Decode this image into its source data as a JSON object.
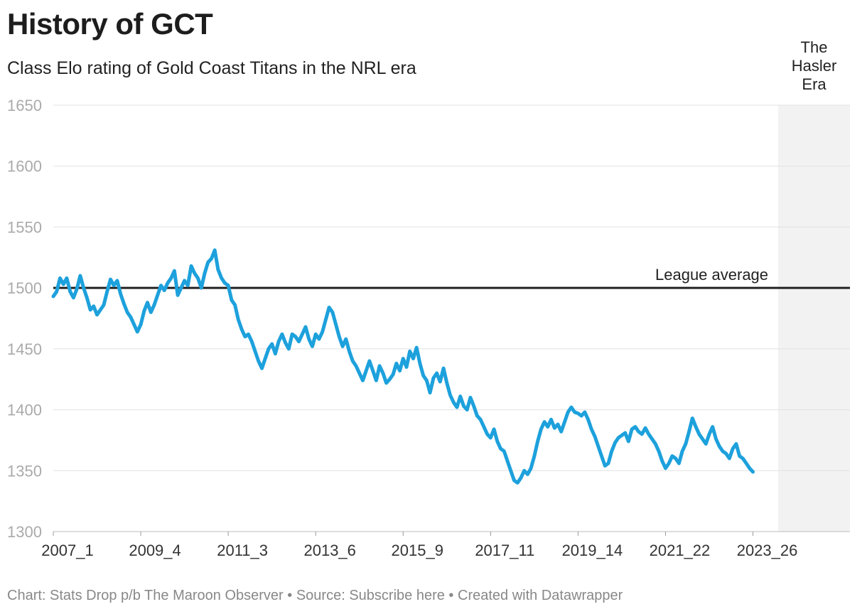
{
  "header": {
    "title": "History of GCT",
    "subtitle": "Class Elo rating of Gold Coast Titans in the NRL era"
  },
  "footer": {
    "chart_by": "Chart: Stats Drop p/b The Maroon Observer",
    "source": "Source: Subscribe here",
    "created_with": "Created with Datawrapper",
    "separator": "•"
  },
  "colors": {
    "line": "#1da1dc",
    "reference_line": "#222222",
    "grid": "#e1e1e1",
    "highlight_band": "#f2f2f2",
    "tick_text": "#aaaaaa",
    "xtick_text": "#333333"
  },
  "chart_data": {
    "type": "line",
    "title": "History of GCT",
    "subtitle": "Class Elo rating of Gold Coast Titans in the NRL era",
    "xlabel": "",
    "ylabel": "",
    "ylim": [
      1300,
      1650
    ],
    "yticks": [
      1300,
      1350,
      1400,
      1450,
      1500,
      1550,
      1600,
      1650
    ],
    "x_index_range": [
      0,
      450
    ],
    "xticks": [
      {
        "label": "2007_1",
        "index": 0
      },
      {
        "label": "2009_4",
        "index": 52
      },
      {
        "label": "2011_3",
        "index": 104
      },
      {
        "label": "2013_6",
        "index": 156
      },
      {
        "label": "2015_9",
        "index": 208
      },
      {
        "label": "2017_11",
        "index": 260
      },
      {
        "label": "2019_14",
        "index": 312
      },
      {
        "label": "2021_22",
        "index": 364
      },
      {
        "label": "2023_26",
        "index": 416
      }
    ],
    "reference_line": {
      "label": "League average",
      "value": 1500
    },
    "highlight": {
      "label_lines": [
        "The",
        "Hasler",
        "Era"
      ],
      "from_index": 431,
      "to_index": 488
    },
    "grid": true,
    "series": [
      {
        "name": "Gold Coast Titans Elo",
        "points": [
          [
            0,
            1493
          ],
          [
            2,
            1497
          ],
          [
            4,
            1508
          ],
          [
            6,
            1503
          ],
          [
            8,
            1508
          ],
          [
            10,
            1497
          ],
          [
            12,
            1492
          ],
          [
            14,
            1499
          ],
          [
            16,
            1510
          ],
          [
            18,
            1500
          ],
          [
            20,
            1492
          ],
          [
            22,
            1482
          ],
          [
            24,
            1485
          ],
          [
            26,
            1478
          ],
          [
            28,
            1482
          ],
          [
            30,
            1486
          ],
          [
            32,
            1497
          ],
          [
            34,
            1507
          ],
          [
            36,
            1502
          ],
          [
            38,
            1506
          ],
          [
            40,
            1495
          ],
          [
            42,
            1487
          ],
          [
            44,
            1480
          ],
          [
            46,
            1476
          ],
          [
            48,
            1470
          ],
          [
            50,
            1464
          ],
          [
            52,
            1470
          ],
          [
            54,
            1481
          ],
          [
            56,
            1488
          ],
          [
            58,
            1480
          ],
          [
            60,
            1486
          ],
          [
            62,
            1494
          ],
          [
            64,
            1502
          ],
          [
            66,
            1498
          ],
          [
            68,
            1504
          ],
          [
            70,
            1508
          ],
          [
            72,
            1514
          ],
          [
            74,
            1494
          ],
          [
            76,
            1500
          ],
          [
            78,
            1506
          ],
          [
            80,
            1502
          ],
          [
            82,
            1518
          ],
          [
            84,
            1512
          ],
          [
            86,
            1508
          ],
          [
            88,
            1500
          ],
          [
            90,
            1512
          ],
          [
            92,
            1521
          ],
          [
            94,
            1524
          ],
          [
            96,
            1531
          ],
          [
            98,
            1515
          ],
          [
            100,
            1508
          ],
          [
            102,
            1504
          ],
          [
            104,
            1502
          ],
          [
            106,
            1490
          ],
          [
            108,
            1486
          ],
          [
            110,
            1474
          ],
          [
            112,
            1466
          ],
          [
            114,
            1460
          ],
          [
            116,
            1462
          ],
          [
            118,
            1456
          ],
          [
            120,
            1448
          ],
          [
            122,
            1440
          ],
          [
            124,
            1434
          ],
          [
            126,
            1442
          ],
          [
            128,
            1450
          ],
          [
            130,
            1454
          ],
          [
            132,
            1446
          ],
          [
            134,
            1456
          ],
          [
            136,
            1462
          ],
          [
            138,
            1455
          ],
          [
            140,
            1450
          ],
          [
            142,
            1462
          ],
          [
            144,
            1460
          ],
          [
            146,
            1456
          ],
          [
            148,
            1462
          ],
          [
            150,
            1468
          ],
          [
            152,
            1458
          ],
          [
            154,
            1452
          ],
          [
            156,
            1462
          ],
          [
            158,
            1458
          ],
          [
            160,
            1464
          ],
          [
            162,
            1474
          ],
          [
            164,
            1484
          ],
          [
            166,
            1480
          ],
          [
            168,
            1470
          ],
          [
            170,
            1460
          ],
          [
            172,
            1452
          ],
          [
            174,
            1458
          ],
          [
            176,
            1448
          ],
          [
            178,
            1440
          ],
          [
            180,
            1436
          ],
          [
            182,
            1430
          ],
          [
            184,
            1424
          ],
          [
            186,
            1432
          ],
          [
            188,
            1440
          ],
          [
            190,
            1432
          ],
          [
            192,
            1424
          ],
          [
            194,
            1436
          ],
          [
            196,
            1430
          ],
          [
            198,
            1422
          ],
          [
            200,
            1425
          ],
          [
            202,
            1429
          ],
          [
            204,
            1438
          ],
          [
            206,
            1432
          ],
          [
            208,
            1442
          ],
          [
            210,
            1435
          ],
          [
            212,
            1448
          ],
          [
            214,
            1442
          ],
          [
            216,
            1451
          ],
          [
            218,
            1438
          ],
          [
            220,
            1428
          ],
          [
            222,
            1424
          ],
          [
            224,
            1414
          ],
          [
            226,
            1426
          ],
          [
            228,
            1430
          ],
          [
            230,
            1423
          ],
          [
            232,
            1434
          ],
          [
            234,
            1422
          ],
          [
            236,
            1412
          ],
          [
            238,
            1406
          ],
          [
            240,
            1402
          ],
          [
            242,
            1411
          ],
          [
            244,
            1403
          ],
          [
            246,
            1400
          ],
          [
            248,
            1410
          ],
          [
            250,
            1403
          ],
          [
            252,
            1395
          ],
          [
            254,
            1392
          ],
          [
            256,
            1386
          ],
          [
            258,
            1380
          ],
          [
            260,
            1377
          ],
          [
            262,
            1384
          ],
          [
            264,
            1374
          ],
          [
            266,
            1368
          ],
          [
            268,
            1366
          ],
          [
            270,
            1358
          ],
          [
            272,
            1350
          ],
          [
            274,
            1342
          ],
          [
            276,
            1340
          ],
          [
            278,
            1344
          ],
          [
            280,
            1350
          ],
          [
            282,
            1347
          ],
          [
            284,
            1352
          ],
          [
            286,
            1362
          ],
          [
            288,
            1374
          ],
          [
            290,
            1384
          ],
          [
            292,
            1390
          ],
          [
            294,
            1386
          ],
          [
            296,
            1392
          ],
          [
            298,
            1385
          ],
          [
            300,
            1388
          ],
          [
            302,
            1382
          ],
          [
            304,
            1390
          ],
          [
            306,
            1398
          ],
          [
            308,
            1402
          ],
          [
            310,
            1398
          ],
          [
            312,
            1397
          ],
          [
            314,
            1395
          ],
          [
            316,
            1398
          ],
          [
            318,
            1392
          ],
          [
            320,
            1384
          ],
          [
            322,
            1378
          ],
          [
            324,
            1370
          ],
          [
            326,
            1362
          ],
          [
            328,
            1354
          ],
          [
            330,
            1356
          ],
          [
            332,
            1366
          ],
          [
            334,
            1373
          ],
          [
            336,
            1377
          ],
          [
            338,
            1379
          ],
          [
            340,
            1381
          ],
          [
            342,
            1374
          ],
          [
            344,
            1384
          ],
          [
            346,
            1386
          ],
          [
            348,
            1382
          ],
          [
            350,
            1380
          ],
          [
            352,
            1385
          ],
          [
            354,
            1380
          ],
          [
            356,
            1376
          ],
          [
            358,
            1372
          ],
          [
            360,
            1366
          ],
          [
            362,
            1358
          ],
          [
            364,
            1352
          ],
          [
            366,
            1356
          ],
          [
            368,
            1362
          ],
          [
            370,
            1360
          ],
          [
            372,
            1356
          ],
          [
            374,
            1366
          ],
          [
            376,
            1372
          ],
          [
            378,
            1382
          ],
          [
            380,
            1393
          ],
          [
            382,
            1386
          ],
          [
            384,
            1380
          ],
          [
            386,
            1376
          ],
          [
            388,
            1372
          ],
          [
            390,
            1380
          ],
          [
            392,
            1386
          ],
          [
            394,
            1376
          ],
          [
            396,
            1370
          ],
          [
            398,
            1366
          ],
          [
            400,
            1364
          ],
          [
            402,
            1360
          ],
          [
            404,
            1368
          ],
          [
            406,
            1372
          ],
          [
            408,
            1362
          ],
          [
            410,
            1360
          ],
          [
            412,
            1356
          ],
          [
            414,
            1352
          ],
          [
            416,
            1349
          ]
        ]
      }
    ]
  }
}
